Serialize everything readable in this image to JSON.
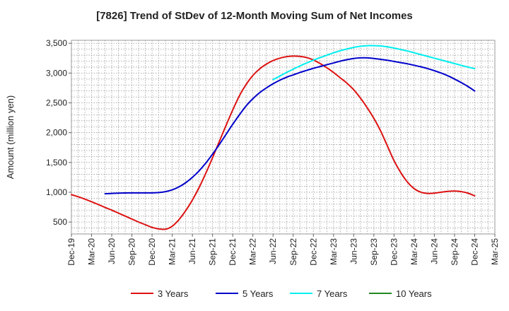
{
  "chart_data": {
    "type": "line",
    "title": "[7826]  Trend of StDev of 12-Month Moving Sum of Net Incomes",
    "xlabel": "",
    "ylabel": "Amount (million yen)",
    "ylim": [
      300,
      3550
    ],
    "y_ticks": [
      500,
      1000,
      1500,
      2000,
      2500,
      3000,
      3500
    ],
    "y_tick_labels": [
      "500",
      "1,000",
      "1,500",
      "2,000",
      "2,500",
      "3,000",
      "3,500"
    ],
    "x_ticks": [
      "Dec-19",
      "Mar-20",
      "Jun-20",
      "Sep-20",
      "Dec-20",
      "Mar-21",
      "Jun-21",
      "Sep-21",
      "Dec-21",
      "Mar-22",
      "Jun-22",
      "Sep-22",
      "Dec-22",
      "Mar-23",
      "Jun-23",
      "Sep-23",
      "Dec-23",
      "Mar-24",
      "Jun-24",
      "Sep-24",
      "Dec-24",
      "Mar-25"
    ],
    "grid": true,
    "legend_position": "bottom",
    "series": [
      {
        "name": "3 Years",
        "color": "#dd1111",
        "x": [
          "Dec-19",
          "Jan-20",
          "Feb-20",
          "Mar-20",
          "Apr-20",
          "May-20",
          "Jun-20",
          "Jul-20",
          "Aug-20",
          "Sep-20",
          "Oct-20",
          "Nov-20",
          "Dec-20",
          "Jan-21",
          "Feb-21",
          "Mar-21",
          "Apr-21",
          "May-21",
          "Jun-21",
          "Jul-21",
          "Aug-21",
          "Sep-21",
          "Oct-21",
          "Nov-21",
          "Dec-21",
          "Jan-22",
          "Feb-22",
          "Mar-22",
          "Apr-22",
          "May-22",
          "Jun-22",
          "Jul-22",
          "Aug-22",
          "Sep-22",
          "Oct-22",
          "Nov-22",
          "Dec-22",
          "Jan-23",
          "Feb-23",
          "Mar-23",
          "Apr-23",
          "May-23",
          "Jun-23",
          "Jul-23",
          "Aug-23",
          "Sep-23",
          "Oct-23",
          "Nov-23",
          "Dec-23",
          "Jan-24",
          "Feb-24",
          "Mar-24",
          "Apr-24",
          "May-24",
          "Jun-24",
          "Jul-24",
          "Aug-24",
          "Sep-24",
          "Oct-24",
          "Nov-24",
          "Dec-24"
        ],
        "values": [
          960,
          925,
          885,
          840,
          795,
          745,
          700,
          650,
          600,
          550,
          500,
          455,
          410,
          385,
          380,
          430,
          540,
          690,
          870,
          1080,
          1320,
          1580,
          1850,
          2120,
          2380,
          2620,
          2810,
          2960,
          3070,
          3150,
          3210,
          3250,
          3275,
          3285,
          3280,
          3260,
          3220,
          3160,
          3090,
          3010,
          2920,
          2830,
          2720,
          2580,
          2420,
          2240,
          2030,
          1780,
          1530,
          1330,
          1170,
          1060,
          1000,
          980,
          985,
          1000,
          1015,
          1020,
          1010,
          985,
          940
        ]
      },
      {
        "name": "5 Years",
        "color": "#0000cc",
        "x": [
          "May-20",
          "Jun-20",
          "Jul-20",
          "Aug-20",
          "Sep-20",
          "Oct-20",
          "Nov-20",
          "Dec-20",
          "Jan-21",
          "Feb-21",
          "Mar-21",
          "Apr-21",
          "May-21",
          "Jun-21",
          "Jul-21",
          "Aug-21",
          "Sep-21",
          "Oct-21",
          "Nov-21",
          "Dec-21",
          "Jan-22",
          "Feb-22",
          "Mar-22",
          "Apr-22",
          "May-22",
          "Jun-22",
          "Jul-22",
          "Aug-22",
          "Sep-22",
          "Oct-22",
          "Nov-22",
          "Dec-22",
          "Jan-23",
          "Feb-23",
          "Mar-23",
          "Apr-23",
          "May-23",
          "Jun-23",
          "Jul-23",
          "Aug-23",
          "Sep-23",
          "Oct-23",
          "Nov-23",
          "Dec-23",
          "Jan-24",
          "Feb-24",
          "Mar-24",
          "Apr-24",
          "May-24",
          "Jun-24",
          "Jul-24",
          "Aug-24",
          "Sep-24",
          "Oct-24",
          "Nov-24",
          "Dec-24"
        ],
        "values": [
          975,
          980,
          985,
          988,
          990,
          990,
          990,
          990,
          995,
          1010,
          1040,
          1090,
          1160,
          1250,
          1360,
          1490,
          1640,
          1800,
          1970,
          2140,
          2300,
          2450,
          2570,
          2670,
          2750,
          2820,
          2880,
          2930,
          2970,
          3010,
          3045,
          3080,
          3110,
          3140,
          3170,
          3200,
          3225,
          3245,
          3255,
          3255,
          3245,
          3230,
          3215,
          3195,
          3175,
          3155,
          3130,
          3105,
          3075,
          3040,
          3000,
          2955,
          2900,
          2840,
          2775,
          2700
        ]
      },
      {
        "name": "7 Years",
        "color": "#00eeee",
        "x": [
          "Jun-22",
          "Jul-22",
          "Aug-22",
          "Sep-22",
          "Oct-22",
          "Nov-22",
          "Dec-22",
          "Jan-23",
          "Feb-23",
          "Mar-23",
          "Apr-23",
          "May-23",
          "Jun-23",
          "Jul-23",
          "Aug-23",
          "Sep-23",
          "Oct-23",
          "Nov-23",
          "Dec-23",
          "Jan-24",
          "Feb-24",
          "Mar-24",
          "Apr-24",
          "May-24",
          "Jun-24",
          "Jul-24",
          "Aug-24",
          "Sep-24",
          "Oct-24",
          "Nov-24",
          "Dec-24"
        ],
        "values": [
          2890,
          2950,
          3010,
          3065,
          3120,
          3170,
          3215,
          3260,
          3300,
          3340,
          3375,
          3405,
          3430,
          3450,
          3460,
          3460,
          3455,
          3440,
          3420,
          3395,
          3370,
          3340,
          3310,
          3280,
          3250,
          3220,
          3190,
          3160,
          3130,
          3100,
          3075
        ]
      },
      {
        "name": "10 Years",
        "color": "#228822",
        "x": [],
        "values": []
      }
    ]
  }
}
